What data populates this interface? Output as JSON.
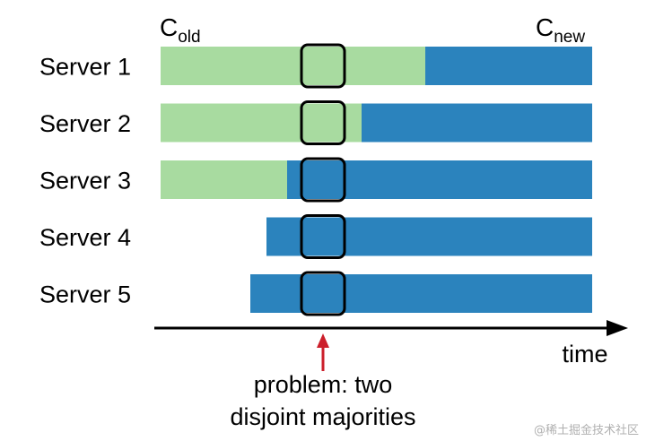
{
  "config_labels": {
    "old": {
      "base": "C",
      "sub": "old"
    },
    "new": {
      "base": "C",
      "sub": "new"
    }
  },
  "servers": [
    {
      "label": "Server 1",
      "switch_at": 474,
      "start": 179
    },
    {
      "label": "Server 2",
      "switch_at": 403,
      "start": 179
    },
    {
      "label": "Server 3",
      "switch_at": 320,
      "start": 179
    },
    {
      "label": "Server 4",
      "switch_at": 297,
      "start": 297
    },
    {
      "label": "Server 5",
      "switch_at": 279,
      "start": 279
    }
  ],
  "time_axis": {
    "label": "time",
    "start": 172,
    "end": 700
  },
  "highlight_time": 360,
  "annotation": {
    "line1": "problem: two",
    "line2": "disjoint majorities"
  },
  "watermark": "@稀土掘金技术社区",
  "colors": {
    "old_config": "#a8dba0",
    "new_config": "#2b83bd",
    "arrow": "#cc1f2b",
    "axis": "#000000",
    "watermark": "#b0b0b0"
  }
}
